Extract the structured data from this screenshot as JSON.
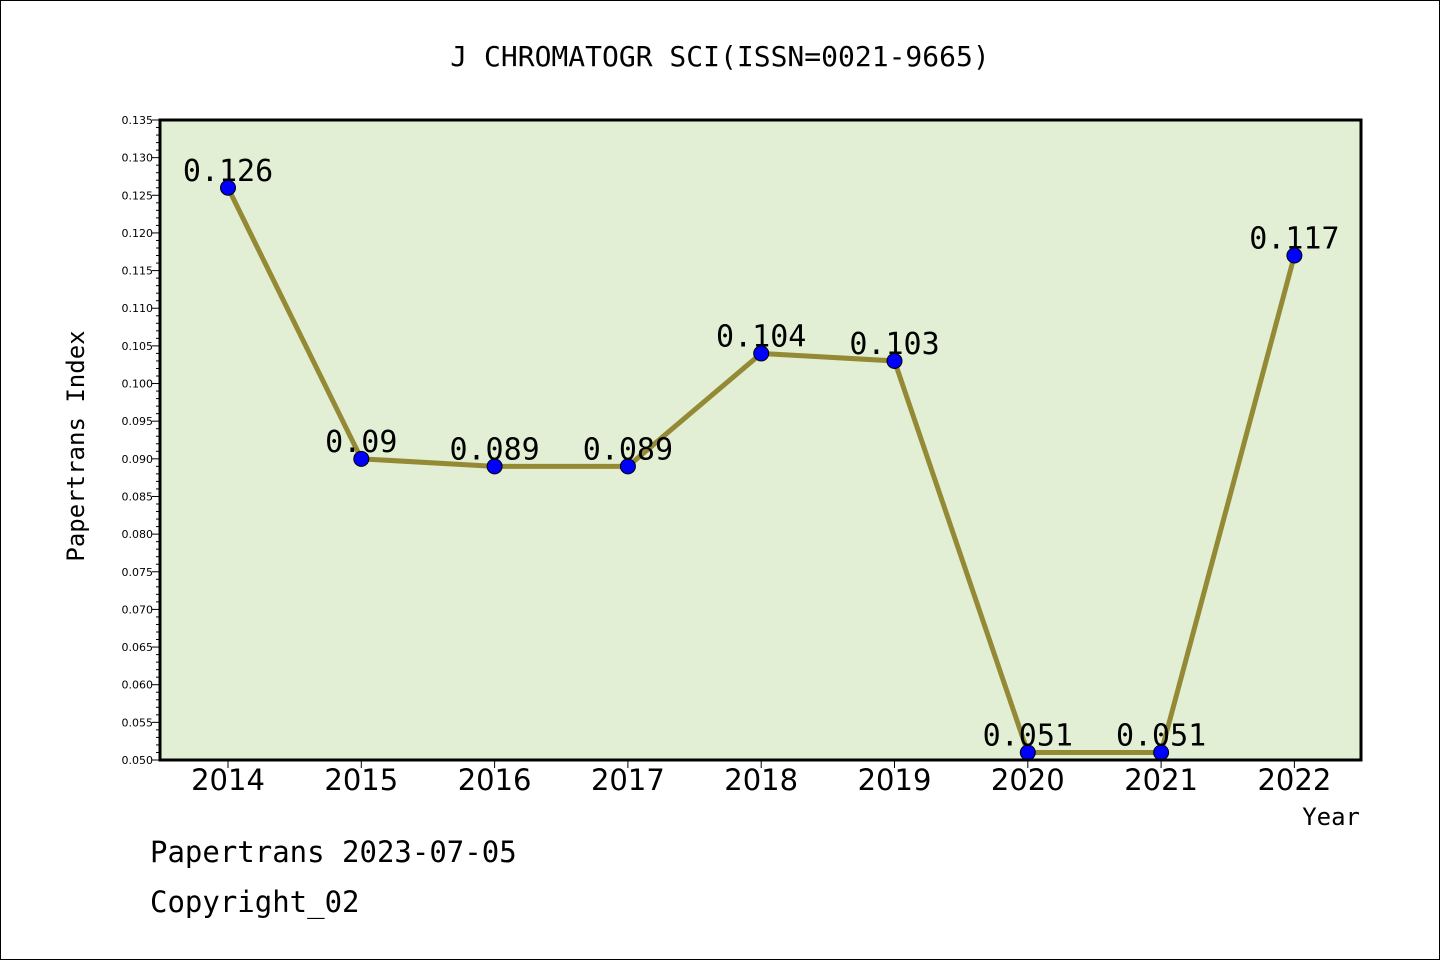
{
  "chart_data": {
    "type": "line",
    "title": "J CHROMATOGR SCI(ISSN=0021-9665)",
    "xlabel": "Year",
    "ylabel": "Papertrans Index",
    "categories": [
      "2014",
      "2015",
      "2016",
      "2017",
      "2018",
      "2019",
      "2020",
      "2021",
      "2022"
    ],
    "values": [
      0.126,
      0.09,
      0.089,
      0.089,
      0.104,
      0.103,
      0.051,
      0.051,
      0.117
    ],
    "data_labels": [
      "0.126",
      "0.09",
      "0.089",
      "0.089",
      "0.104",
      "0.103",
      "0.051",
      "0.051",
      "0.117"
    ],
    "ylim": [
      0.05,
      0.135
    ],
    "y_ticks": [
      "0.050",
      "0.055",
      "0.060",
      "0.065",
      "0.070",
      "0.075",
      "0.080",
      "0.085",
      "0.090",
      "0.095",
      "0.100",
      "0.105",
      "0.110",
      "0.115",
      "0.120",
      "0.125",
      "0.130",
      "0.135"
    ],
    "y_tick_values": [
      0.05,
      0.055,
      0.06,
      0.065,
      0.07,
      0.075,
      0.08,
      0.085,
      0.09,
      0.095,
      0.1,
      0.105,
      0.11,
      0.115,
      0.12,
      0.125,
      0.13,
      0.135
    ],
    "grid": false,
    "colors": {
      "plot_background": "#e2efd4",
      "line": "#948a36",
      "marker": "#0000ff"
    }
  },
  "footer": {
    "line1": "Papertrans 2023-07-05",
    "line2": "Copyright_02"
  }
}
